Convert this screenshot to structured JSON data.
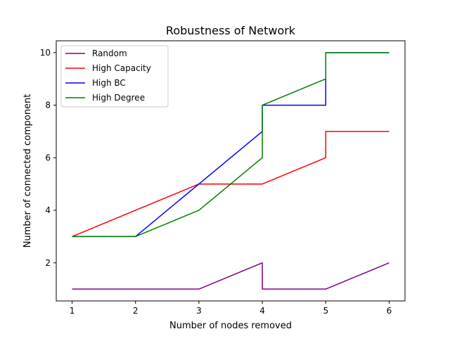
{
  "chart_data": {
    "type": "line",
    "title": "Robustness of Network",
    "xlabel": "Number of nodes removed",
    "ylabel": "Number of connected component",
    "xlim": [
      0.75,
      6.25
    ],
    "ylim": [
      0.55,
      10.45
    ],
    "x_ticks": [
      "1",
      "2",
      "3",
      "4",
      "5",
      "6"
    ],
    "y_ticks": [
      "2",
      "4",
      "6",
      "8",
      "10"
    ],
    "grid": false,
    "legend_position": "top-left",
    "series": [
      {
        "name": "Random",
        "color": "#800080",
        "points": [
          [
            1,
            1
          ],
          [
            2,
            1
          ],
          [
            3,
            1
          ],
          [
            4,
            2
          ],
          [
            4,
            1
          ],
          [
            5,
            1
          ],
          [
            6,
            2
          ]
        ]
      },
      {
        "name": "High Capacity",
        "color": "#ff0000",
        "points": [
          [
            1,
            3
          ],
          [
            2,
            4
          ],
          [
            3,
            5
          ],
          [
            4,
            5
          ],
          [
            5,
            6
          ],
          [
            5,
            7
          ],
          [
            6,
            7
          ]
        ]
      },
      {
        "name": "High BC",
        "color": "#0000ff",
        "points": [
          [
            1,
            3
          ],
          [
            2,
            3
          ],
          [
            3,
            5
          ],
          [
            4,
            7
          ],
          [
            4,
            8
          ],
          [
            5,
            8
          ],
          [
            5,
            10
          ],
          [
            6,
            10
          ]
        ]
      },
      {
        "name": "High Degree",
        "color": "#008000",
        "points": [
          [
            1,
            3
          ],
          [
            2,
            3
          ],
          [
            3,
            4
          ],
          [
            4,
            6
          ],
          [
            4,
            8
          ],
          [
            5,
            9
          ],
          [
            5,
            10
          ],
          [
            6,
            10
          ]
        ]
      }
    ]
  }
}
